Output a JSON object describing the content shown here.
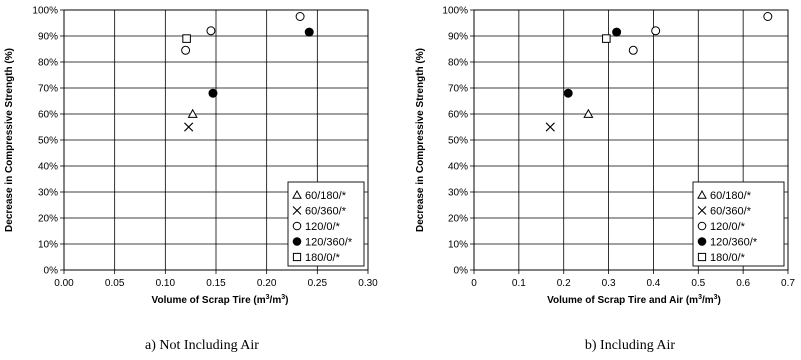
{
  "chart_data": [
    {
      "type": "scatter",
      "subtitle": "a) Not Including Air",
      "xlabel_main": "Volume of Scrap Tire (m",
      "xlabel_unit_sup1": "3",
      "xlabel_unit_mid": "/m",
      "xlabel_unit_sup2": "3",
      "xlabel_tail": ")",
      "ylabel": "Decrease in Compressive Strength (%)",
      "xlim": [
        0,
        0.3
      ],
      "ylim": [
        0,
        100
      ],
      "x_ticks": [
        "0.00",
        "0.05",
        "0.10",
        "0.15",
        "0.20",
        "0.25",
        "0.30"
      ],
      "y_ticks": [
        "0%",
        "10%",
        "20%",
        "30%",
        "40%",
        "50%",
        "60%",
        "70%",
        "80%",
        "90%",
        "100%"
      ],
      "legend_position": "bottom-right",
      "series": [
        {
          "name": "60/180/*",
          "marker": "triangle",
          "points": [
            [
              0.127,
              60
            ]
          ]
        },
        {
          "name": "60/360/*",
          "marker": "x",
          "points": [
            [
              0.123,
              55
            ]
          ]
        },
        {
          "name": "120/0/*",
          "marker": "circle-open",
          "points": [
            [
              0.12,
              84.5
            ],
            [
              0.145,
              92
            ],
            [
              0.233,
              97.5
            ]
          ]
        },
        {
          "name": "120/360/*",
          "marker": "circle-filled",
          "points": [
            [
              0.147,
              68
            ],
            [
              0.242,
              91.5
            ]
          ]
        },
        {
          "name": "180/0/*",
          "marker": "square",
          "points": [
            [
              0.121,
              89
            ]
          ]
        }
      ]
    },
    {
      "type": "scatter",
      "subtitle": "b) Including Air",
      "xlabel_main": "Volume of Scrap Tire and Air (m",
      "xlabel_unit_sup1": "3",
      "xlabel_unit_mid": "/m",
      "xlabel_unit_sup2": "3",
      "xlabel_tail": ")",
      "ylabel": "Decrease in Compressive Strength (%)",
      "xlim": [
        0,
        0.7
      ],
      "ylim": [
        0,
        100
      ],
      "x_ticks": [
        "0",
        "0.1",
        "0.2",
        "0.3",
        "0.4",
        "0.5",
        "0.6",
        "0.7"
      ],
      "y_ticks": [
        "0%",
        "10%",
        "20%",
        "30%",
        "40%",
        "50%",
        "60%",
        "70%",
        "80%",
        "90%",
        "100%"
      ],
      "legend_position": "bottom-right",
      "series": [
        {
          "name": "60/180/*",
          "marker": "triangle",
          "points": [
            [
              0.255,
              60
            ]
          ]
        },
        {
          "name": "60/360/*",
          "marker": "x",
          "points": [
            [
              0.17,
              55
            ]
          ]
        },
        {
          "name": "120/0/*",
          "marker": "circle-open",
          "points": [
            [
              0.355,
              84.5
            ],
            [
              0.405,
              92
            ],
            [
              0.655,
              97.5
            ]
          ]
        },
        {
          "name": "120/360/*",
          "marker": "circle-filled",
          "points": [
            [
              0.21,
              68
            ],
            [
              0.318,
              91.5
            ]
          ]
        },
        {
          "name": "180/0/*",
          "marker": "square",
          "points": [
            [
              0.295,
              89
            ]
          ]
        }
      ]
    }
  ]
}
